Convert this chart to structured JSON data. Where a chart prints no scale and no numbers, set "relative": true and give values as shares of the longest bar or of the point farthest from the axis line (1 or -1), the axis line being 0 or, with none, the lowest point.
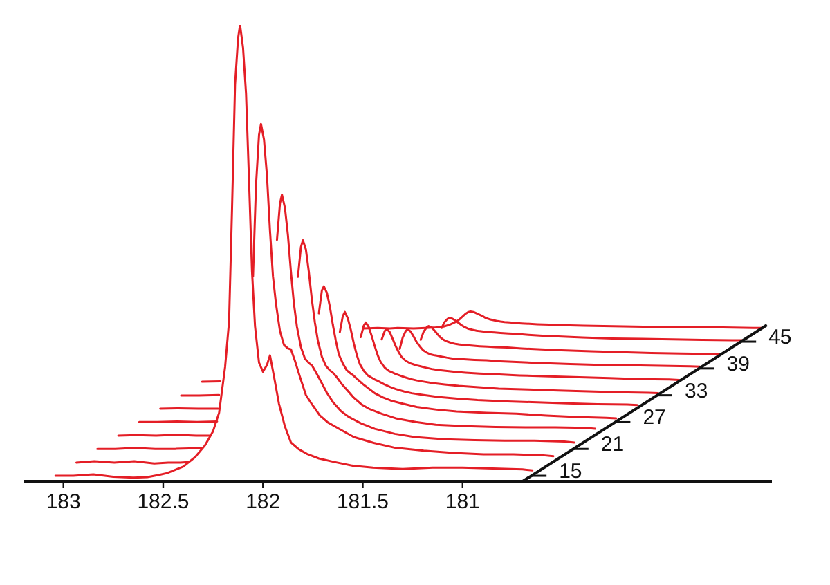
{
  "chart_data": {
    "type": "line",
    "relative": true,
    "xlim": [
      183.2,
      179.45
    ],
    "xticks": [
      183,
      182.5,
      182,
      181.5,
      181
    ],
    "series": [
      {
        "name": "15",
        "color": "#e41e26",
        "x": [
          183.04,
          182.95,
          182.85,
          182.75,
          182.65,
          182.58,
          182.52,
          182.48,
          182.4,
          182.34,
          182.29,
          182.25,
          182.22,
          182.19,
          182.17,
          182.155,
          182.14,
          182.125,
          182.115,
          182.1,
          182.085,
          182.07,
          182.055,
          182.04,
          182.02,
          182.0,
          181.98,
          181.965,
          181.945,
          181.92,
          181.89,
          181.86,
          181.82,
          181.78,
          181.72,
          181.65,
          181.55,
          181.45,
          181.3,
          181.15,
          181.0,
          180.85,
          180.7,
          180.65
        ],
        "values": [
          0.012,
          0.012,
          0.015,
          0.01,
          0.008,
          0.009,
          0.014,
          0.018,
          0.032,
          0.053,
          0.079,
          0.11,
          0.15,
          0.25,
          0.35,
          0.6,
          0.87,
          0.97,
          1.0,
          0.95,
          0.85,
          0.66,
          0.46,
          0.34,
          0.26,
          0.24,
          0.255,
          0.276,
          0.23,
          0.17,
          0.12,
          0.085,
          0.07,
          0.06,
          0.05,
          0.043,
          0.034,
          0.03,
          0.027,
          0.03,
          0.03,
          0.028,
          0.026,
          0.024
        ]
      },
      {
        "color": "#e41e26",
        "x": [
          182.935,
          182.845,
          182.745,
          182.645,
          182.545,
          182.475,
          182.415,
          182.375,
          182.295,
          182.05,
          182.035,
          182.02,
          182.01,
          181.995,
          181.98,
          181.965,
          181.95,
          181.935,
          181.915,
          181.895,
          181.875,
          181.86,
          181.84,
          181.815,
          181.785,
          181.755,
          181.715,
          181.675,
          181.615,
          181.545,
          181.445,
          181.345,
          181.195,
          181.045,
          180.895,
          180.745,
          180.595,
          180.545
        ],
        "values": [
          0.041,
          0.044,
          0.041,
          0.044,
          0.039,
          0.041,
          0.041,
          0.042,
          null,
          0.449,
          0.649,
          0.759,
          0.783,
          0.749,
          0.669,
          0.549,
          0.449,
          0.389,
          0.329,
          0.299,
          0.291,
          0.289,
          0.264,
          0.229,
          0.189,
          0.169,
          0.144,
          0.129,
          0.114,
          0.097,
          0.084,
          0.074,
          0.067,
          0.062,
          0.059,
          0.059,
          0.057,
          0.055
        ]
      },
      {
        "name": "21",
        "color": "#e41e26",
        "x": [
          182.83,
          182.74,
          182.64,
          182.54,
          182.44,
          182.37,
          182.31,
          182.27,
          181.93,
          181.915,
          181.905,
          181.89,
          181.875,
          181.86,
          181.845,
          181.83,
          181.81,
          181.79,
          181.77,
          181.755,
          181.735,
          181.71,
          181.68,
          181.65,
          181.61,
          181.57,
          181.51,
          181.44,
          181.34,
          181.24,
          181.09,
          180.94,
          180.79,
          180.64,
          180.49,
          180.44
        ],
        "values": [
          0.071,
          0.071,
          0.073,
          0.071,
          0.071,
          0.072,
          0.073,
          null,
          0.529,
          0.609,
          0.628,
          0.599,
          0.539,
          0.459,
          0.389,
          0.339,
          0.294,
          0.269,
          0.259,
          0.254,
          0.239,
          0.219,
          0.194,
          0.174,
          0.154,
          0.141,
          0.127,
          0.115,
          0.104,
          0.097,
          0.092,
          0.09,
          0.089,
          0.089,
          0.087,
          0.085
        ]
      },
      {
        "color": "#e41e26",
        "x": [
          182.725,
          182.635,
          182.535,
          182.435,
          182.335,
          182.265,
          182.205,
          181.825,
          181.81,
          181.8,
          181.785,
          181.77,
          181.755,
          181.74,
          181.725,
          181.705,
          181.685,
          181.665,
          181.65,
          181.63,
          181.605,
          181.575,
          181.545,
          181.505,
          181.465,
          181.405,
          181.335,
          181.235,
          181.135,
          180.985,
          180.835,
          180.685,
          180.535,
          180.385,
          180.335
        ],
        "values": [
          0.1,
          0.101,
          0.1,
          0.102,
          0.1,
          0.1,
          null,
          0.448,
          0.513,
          0.528,
          0.508,
          0.458,
          0.398,
          0.348,
          0.308,
          0.273,
          0.253,
          0.243,
          0.238,
          0.228,
          0.213,
          0.198,
          0.183,
          0.168,
          0.158,
          0.148,
          0.138,
          0.13,
          0.124,
          0.121,
          0.119,
          0.118,
          0.118,
          0.117,
          0.115
        ]
      },
      {
        "name": "27",
        "color": "#e41e26",
        "x": [
          182.62,
          182.53,
          182.43,
          182.33,
          182.23,
          182.16,
          181.72,
          181.705,
          181.695,
          181.68,
          181.665,
          181.65,
          181.635,
          181.62,
          181.6,
          181.58,
          181.56,
          181.545,
          181.525,
          181.5,
          181.47,
          181.44,
          181.4,
          181.36,
          181.3,
          181.23,
          181.13,
          181.03,
          180.88,
          180.73,
          180.58,
          180.43,
          180.28,
          180.23
        ],
        "values": [
          0.13,
          0.13,
          0.131,
          0.13,
          0.131,
          null,
          0.368,
          0.418,
          0.427,
          0.413,
          0.383,
          0.343,
          0.308,
          0.278,
          0.258,
          0.243,
          0.236,
          0.231,
          0.223,
          0.213,
          0.203,
          0.193,
          0.184,
          0.177,
          0.17,
          0.163,
          0.157,
          0.153,
          0.15,
          0.148,
          0.144,
          0.141,
          0.139,
          0.138
        ]
      },
      {
        "color": "#e41e26",
        "x": [
          182.515,
          182.425,
          182.325,
          182.225,
          182.125,
          181.615,
          181.6,
          181.59,
          181.575,
          181.56,
          181.545,
          181.53,
          181.515,
          181.495,
          181.475,
          181.455,
          181.44,
          181.42,
          181.395,
          181.365,
          181.335,
          181.295,
          181.255,
          181.195,
          181.125,
          181.025,
          180.925,
          180.775,
          180.625,
          180.475,
          180.325,
          180.175,
          180.125
        ],
        "values": [
          0.159,
          0.16,
          0.159,
          0.159,
          null,
          0.327,
          0.362,
          0.371,
          0.357,
          0.332,
          0.302,
          0.277,
          0.257,
          0.242,
          0.232,
          0.227,
          0.223,
          0.219,
          0.213,
          0.207,
          0.202,
          0.197,
          0.193,
          0.189,
          0.185,
          0.181,
          0.178,
          0.175,
          0.173,
          0.171,
          0.169,
          0.168,
          0.167
        ]
      },
      {
        "name": "33",
        "color": "#e41e26",
        "x": [
          182.41,
          182.32,
          182.22,
          182.12,
          181.51,
          181.495,
          181.485,
          181.47,
          181.455,
          181.44,
          181.425,
          181.41,
          181.39,
          181.37,
          181.35,
          181.335,
          181.315,
          181.29,
          181.26,
          181.23,
          181.19,
          181.15,
          181.09,
          181.02,
          180.92,
          180.82,
          180.67,
          180.52,
          180.37,
          180.22,
          180.07,
          180.02
        ],
        "values": [
          0.188,
          0.188,
          0.189,
          null,
          0.316,
          0.341,
          0.348,
          0.338,
          0.318,
          0.296,
          0.276,
          0.261,
          0.249,
          0.242,
          0.238,
          0.235,
          0.232,
          0.228,
          0.224,
          0.221,
          0.218,
          0.215,
          0.212,
          0.209,
          0.206,
          0.203,
          0.201,
          0.199,
          0.197,
          0.195,
          0.194,
          0.193
        ]
      },
      {
        "color": "#e41e26",
        "x": [
          182.305,
          182.215,
          182.115,
          181.405,
          181.39,
          181.38,
          181.365,
          181.35,
          181.335,
          181.32,
          181.305,
          181.285,
          181.265,
          181.245,
          181.23,
          181.21,
          181.185,
          181.155,
          181.125,
          181.085,
          181.045,
          180.985,
          180.915,
          180.815,
          180.715,
          180.565,
          180.415,
          180.265,
          180.115,
          179.965,
          179.915
        ],
        "values": [
          0.218,
          0.219,
          null,
          0.311,
          0.329,
          0.334,
          0.327,
          0.312,
          0.296,
          0.283,
          0.272,
          0.264,
          0.259,
          0.256,
          0.254,
          0.252,
          0.249,
          0.246,
          0.244,
          0.242,
          0.24,
          0.238,
          0.236,
          0.234,
          0.232,
          0.23,
          0.228,
          0.226,
          0.224,
          0.223,
          0.222
        ]
      },
      {
        "name": "39",
        "color": "#e41e26",
        "x": [
          181.315,
          181.3,
          181.285,
          181.275,
          181.26,
          181.245,
          181.23,
          181.215,
          181.2,
          181.18,
          181.16,
          181.14,
          181.125,
          181.105,
          181.08,
          181.05,
          181.02,
          180.98,
          180.94,
          180.88,
          180.81,
          180.71,
          180.61,
          180.46,
          180.31,
          180.16,
          180.01,
          179.86,
          179.81
        ],
        "values": [
          0.29,
          0.315,
          0.329,
          0.333,
          0.328,
          0.317,
          0.305,
          0.296,
          0.288,
          0.282,
          0.278,
          0.276,
          0.275,
          0.273,
          0.271,
          0.269,
          0.268,
          0.267,
          0.266,
          0.265,
          0.263,
          0.261,
          0.259,
          0.257,
          0.255,
          0.254,
          0.253,
          0.252,
          0.251
        ]
      },
      {
        "color": "#e41e26",
        "x": [
          181.21,
          181.195,
          181.18,
          181.17,
          181.155,
          181.14,
          181.125,
          181.11,
          181.095,
          181.075,
          181.055,
          181.035,
          181.02,
          181.0,
          180.975,
          180.945,
          180.915,
          180.875,
          180.835,
          180.775,
          180.705,
          180.605,
          180.505,
          180.355,
          180.205,
          180.055,
          179.905,
          179.755,
          179.705
        ],
        "values": [
          0.31,
          0.328,
          0.337,
          0.34,
          0.337,
          0.33,
          0.322,
          0.315,
          0.31,
          0.306,
          0.303,
          0.301,
          0.3,
          0.299,
          0.298,
          0.297,
          0.296,
          0.295,
          0.294,
          0.293,
          0.291,
          0.289,
          0.287,
          0.285,
          0.283,
          0.281,
          0.28,
          0.279,
          0.278
        ]
      },
      {
        "name": "45",
        "color": "#e41e26",
        "x": [
          181.105,
          181.09,
          181.075,
          181.065,
          181.05,
          181.035,
          181.02,
          181.005,
          180.99,
          180.97,
          180.95,
          180.93,
          180.915,
          180.895,
          180.87,
          180.84,
          180.81,
          180.77,
          180.73,
          180.67,
          180.6,
          180.5,
          180.4,
          180.25,
          180.1,
          179.95,
          179.8,
          179.65,
          179.6
        ],
        "values": [
          0.336,
          0.349,
          0.356,
          0.358,
          0.356,
          0.352,
          0.347,
          0.342,
          0.338,
          0.334,
          0.332,
          0.33,
          0.329,
          0.328,
          0.327,
          0.326,
          0.325,
          0.324,
          0.323,
          0.321,
          0.319,
          0.317,
          0.315,
          0.313,
          0.312,
          0.311,
          0.31,
          0.309,
          0.309
        ]
      },
      {
        "color": "#e41e26",
        "x": [
          181.495,
          181.425,
          181.365,
          181.325,
          181.245,
          181.185,
          181.135,
          181.095,
          181.065,
          181.035,
          181.015,
          181.0,
          180.985,
          180.97,
          180.96,
          180.945,
          180.93,
          180.915,
          180.9,
          180.885,
          180.865,
          180.845,
          180.825,
          180.81,
          180.79,
          180.765,
          180.735,
          180.705,
          180.665,
          180.625,
          180.565,
          180.495,
          180.395,
          180.295,
          180.145,
          179.995,
          179.845,
          179.695,
          179.545,
          179.495
        ],
        "values": [
          0.335,
          0.336,
          0.335,
          0.336,
          0.335,
          0.336,
          0.337,
          0.339,
          0.343,
          0.349,
          0.355,
          0.361,
          0.367,
          0.371,
          0.372,
          0.371,
          0.368,
          0.365,
          0.362,
          0.358,
          0.355,
          0.353,
          0.351,
          0.35,
          0.349,
          0.348,
          0.347,
          0.346,
          0.345,
          0.344,
          0.343,
          0.342,
          0.341,
          0.34,
          0.339,
          0.338,
          0.337,
          0.337,
          0.336,
          0.336
        ]
      }
    ]
  }
}
